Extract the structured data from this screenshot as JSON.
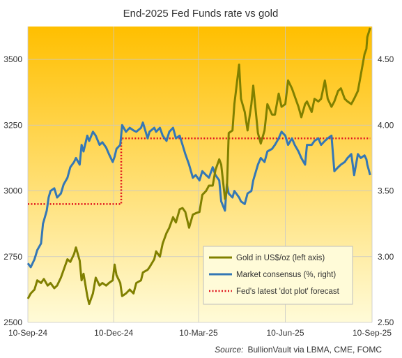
{
  "chart_data": {
    "type": "line",
    "title": "End-2025 Fed Funds rate vs gold",
    "x_ticks": [
      "10-Sep-24",
      "10-Dec-24",
      "10-Mar-25",
      "10-Jun-25",
      "10-Sep-25"
    ],
    "x_range": [
      "2024-09-10",
      "2025-09-10"
    ],
    "y_left": {
      "min": 2500,
      "max": 3625,
      "ticks": [
        "2500",
        "2750",
        "3000",
        "3250",
        "3500"
      ]
    },
    "y_right": {
      "min": 2.5,
      "max": 4.75,
      "ticks": [
        "2.50",
        "3.00",
        "3.50",
        "4.00",
        "4.50"
      ]
    },
    "gridlines": true,
    "legend_position": "bottom-right",
    "colors": {
      "gold": "#808000",
      "consensus": "#3477b5",
      "dot_plot": "#e0141e",
      "bg_top": "#ffbf00",
      "bg_bottom": "#fffbd8"
    },
    "series": [
      {
        "name": "Gold in US$/oz (left axis)",
        "axis": "left",
        "style": "solid",
        "points": [
          [
            "2024-09-10",
            2590
          ],
          [
            "2024-09-13",
            2610
          ],
          [
            "2024-09-17",
            2625
          ],
          [
            "2024-09-20",
            2660
          ],
          [
            "2024-09-24",
            2650
          ],
          [
            "2024-09-27",
            2665
          ],
          [
            "2024-10-01",
            2640
          ],
          [
            "2024-10-04",
            2650
          ],
          [
            "2024-10-08",
            2630
          ],
          [
            "2024-10-11",
            2640
          ],
          [
            "2024-10-15",
            2670
          ],
          [
            "2024-10-18",
            2700
          ],
          [
            "2024-10-22",
            2740
          ],
          [
            "2024-10-25",
            2730
          ],
          [
            "2024-10-29",
            2760
          ],
          [
            "2024-10-31",
            2785
          ],
          [
            "2024-11-04",
            2735
          ],
          [
            "2024-11-06",
            2660
          ],
          [
            "2024-11-08",
            2685
          ],
          [
            "2024-11-12",
            2600
          ],
          [
            "2024-11-14",
            2570
          ],
          [
            "2024-11-18",
            2610
          ],
          [
            "2024-11-21",
            2670
          ],
          [
            "2024-11-25",
            2640
          ],
          [
            "2024-11-28",
            2650
          ],
          [
            "2024-12-02",
            2640
          ],
          [
            "2024-12-05",
            2650
          ],
          [
            "2024-12-09",
            2660
          ],
          [
            "2024-12-11",
            2720
          ],
          [
            "2024-12-13",
            2680
          ],
          [
            "2024-12-17",
            2650
          ],
          [
            "2024-12-19",
            2600
          ],
          [
            "2024-12-23",
            2610
          ],
          [
            "2024-12-27",
            2625
          ],
          [
            "2024-12-31",
            2610
          ],
          [
            "2025-01-03",
            2650
          ],
          [
            "2025-01-08",
            2660
          ],
          [
            "2025-01-10",
            2690
          ],
          [
            "2025-01-15",
            2700
          ],
          [
            "2025-01-17",
            2710
          ],
          [
            "2025-01-22",
            2740
          ],
          [
            "2025-01-24",
            2770
          ],
          [
            "2025-01-28",
            2750
          ],
          [
            "2025-01-31",
            2800
          ],
          [
            "2025-02-04",
            2840
          ],
          [
            "2025-02-07",
            2860
          ],
          [
            "2025-02-11",
            2900
          ],
          [
            "2025-02-14",
            2880
          ],
          [
            "2025-02-18",
            2930
          ],
          [
            "2025-02-21",
            2935
          ],
          [
            "2025-02-24",
            2920
          ],
          [
            "2025-02-28",
            2860
          ],
          [
            "2025-03-04",
            2910
          ],
          [
            "2025-03-07",
            2915
          ],
          [
            "2025-03-11",
            2920
          ],
          [
            "2025-03-14",
            2985
          ],
          [
            "2025-03-18",
            3000
          ],
          [
            "2025-03-21",
            3020
          ],
          [
            "2025-03-25",
            3020
          ],
          [
            "2025-03-28",
            3080
          ],
          [
            "2025-04-01",
            3120
          ],
          [
            "2025-04-03",
            3100
          ],
          [
            "2025-04-07",
            2970
          ],
          [
            "2025-04-09",
            3000
          ],
          [
            "2025-04-11",
            3220
          ],
          [
            "2025-04-15",
            3230
          ],
          [
            "2025-04-17",
            3330
          ],
          [
            "2025-04-22",
            3480
          ],
          [
            "2025-04-24",
            3350
          ],
          [
            "2025-04-28",
            3300
          ],
          [
            "2025-05-01",
            3230
          ],
          [
            "2025-05-05",
            3330
          ],
          [
            "2025-05-07",
            3400
          ],
          [
            "2025-05-12",
            3220
          ],
          [
            "2025-05-15",
            3180
          ],
          [
            "2025-05-19",
            3230
          ],
          [
            "2025-05-22",
            3330
          ],
          [
            "2025-05-27",
            3290
          ],
          [
            "2025-05-30",
            3290
          ],
          [
            "2025-06-03",
            3370
          ],
          [
            "2025-06-06",
            3320
          ],
          [
            "2025-06-10",
            3330
          ],
          [
            "2025-06-13",
            3420
          ],
          [
            "2025-06-17",
            3390
          ],
          [
            "2025-06-20",
            3360
          ],
          [
            "2025-06-24",
            3320
          ],
          [
            "2025-06-27",
            3280
          ],
          [
            "2025-07-01",
            3330
          ],
          [
            "2025-07-03",
            3340
          ],
          [
            "2025-07-08",
            3300
          ],
          [
            "2025-07-11",
            3350
          ],
          [
            "2025-07-15",
            3340
          ],
          [
            "2025-07-18",
            3350
          ],
          [
            "2025-07-22",
            3420
          ],
          [
            "2025-07-25",
            3350
          ],
          [
            "2025-07-29",
            3320
          ],
          [
            "2025-08-01",
            3340
          ],
          [
            "2025-08-05",
            3380
          ],
          [
            "2025-08-08",
            3390
          ],
          [
            "2025-08-12",
            3350
          ],
          [
            "2025-08-15",
            3340
          ],
          [
            "2025-08-19",
            3330
          ],
          [
            "2025-08-22",
            3350
          ],
          [
            "2025-08-26",
            3380
          ],
          [
            "2025-08-29",
            3440
          ],
          [
            "2025-09-02",
            3520
          ],
          [
            "2025-09-04",
            3540
          ],
          [
            "2025-09-05",
            3585
          ],
          [
            "2025-09-08",
            3620
          ]
        ]
      },
      {
        "name": "Market consensus (%, right)",
        "axis": "right",
        "style": "solid",
        "points": [
          [
            "2024-09-10",
            2.95
          ],
          [
            "2024-09-13",
            2.92
          ],
          [
            "2024-09-17",
            2.98
          ],
          [
            "2024-09-20",
            3.05
          ],
          [
            "2024-09-24",
            3.1
          ],
          [
            "2024-09-26",
            3.25
          ],
          [
            "2024-09-30",
            3.35
          ],
          [
            "2024-10-02",
            3.45
          ],
          [
            "2024-10-04",
            3.5
          ],
          [
            "2024-10-08",
            3.52
          ],
          [
            "2024-10-11",
            3.45
          ],
          [
            "2024-10-15",
            3.48
          ],
          [
            "2024-10-18",
            3.55
          ],
          [
            "2024-10-22",
            3.6
          ],
          [
            "2024-10-25",
            3.68
          ],
          [
            "2024-10-29",
            3.72
          ],
          [
            "2024-10-31",
            3.75
          ],
          [
            "2024-11-04",
            3.7
          ],
          [
            "2024-11-06",
            3.85
          ],
          [
            "2024-11-08",
            3.8
          ],
          [
            "2024-11-12",
            3.92
          ],
          [
            "2024-11-14",
            3.88
          ],
          [
            "2024-11-18",
            3.95
          ],
          [
            "2024-11-21",
            3.92
          ],
          [
            "2024-11-25",
            3.85
          ],
          [
            "2024-11-28",
            3.87
          ],
          [
            "2024-12-02",
            3.83
          ],
          [
            "2024-12-05",
            3.78
          ],
          [
            "2024-12-09",
            3.72
          ],
          [
            "2024-12-11",
            3.76
          ],
          [
            "2024-12-13",
            3.82
          ],
          [
            "2024-12-17",
            3.85
          ],
          [
            "2024-12-19",
            4.0
          ],
          [
            "2024-12-23",
            3.95
          ],
          [
            "2024-12-27",
            3.98
          ],
          [
            "2024-12-31",
            3.96
          ],
          [
            "2025-01-03",
            3.95
          ],
          [
            "2025-01-08",
            3.98
          ],
          [
            "2025-01-10",
            4.02
          ],
          [
            "2025-01-15",
            3.9
          ],
          [
            "2025-01-17",
            3.95
          ],
          [
            "2025-01-22",
            3.98
          ],
          [
            "2025-01-24",
            3.95
          ],
          [
            "2025-01-28",
            3.98
          ],
          [
            "2025-01-31",
            3.92
          ],
          [
            "2025-02-04",
            3.88
          ],
          [
            "2025-02-07",
            3.95
          ],
          [
            "2025-02-11",
            3.98
          ],
          [
            "2025-02-14",
            3.9
          ],
          [
            "2025-02-18",
            3.92
          ],
          [
            "2025-02-21",
            3.85
          ],
          [
            "2025-02-24",
            3.78
          ],
          [
            "2025-02-28",
            3.7
          ],
          [
            "2025-03-04",
            3.6
          ],
          [
            "2025-03-07",
            3.62
          ],
          [
            "2025-03-11",
            3.58
          ],
          [
            "2025-03-14",
            3.65
          ],
          [
            "2025-03-18",
            3.62
          ],
          [
            "2025-03-21",
            3.6
          ],
          [
            "2025-03-25",
            3.68
          ],
          [
            "2025-03-28",
            3.62
          ],
          [
            "2025-04-01",
            3.58
          ],
          [
            "2025-04-03",
            3.42
          ],
          [
            "2025-04-07",
            3.35
          ],
          [
            "2025-04-09",
            3.55
          ],
          [
            "2025-04-11",
            3.48
          ],
          [
            "2025-04-15",
            3.45
          ],
          [
            "2025-04-17",
            3.5
          ],
          [
            "2025-04-22",
            3.45
          ],
          [
            "2025-04-24",
            3.42
          ],
          [
            "2025-04-28",
            3.4
          ],
          [
            "2025-05-01",
            3.48
          ],
          [
            "2025-05-05",
            3.5
          ],
          [
            "2025-05-07",
            3.58
          ],
          [
            "2025-05-12",
            3.7
          ],
          [
            "2025-05-15",
            3.75
          ],
          [
            "2025-05-19",
            3.72
          ],
          [
            "2025-05-22",
            3.8
          ],
          [
            "2025-05-27",
            3.82
          ],
          [
            "2025-05-30",
            3.85
          ],
          [
            "2025-06-03",
            3.9
          ],
          [
            "2025-06-06",
            3.95
          ],
          [
            "2025-06-10",
            3.92
          ],
          [
            "2025-06-13",
            3.85
          ],
          [
            "2025-06-17",
            3.9
          ],
          [
            "2025-06-20",
            3.85
          ],
          [
            "2025-06-24",
            3.8
          ],
          [
            "2025-06-27",
            3.75
          ],
          [
            "2025-07-01",
            3.7
          ],
          [
            "2025-07-03",
            3.85
          ],
          [
            "2025-07-08",
            3.85
          ],
          [
            "2025-07-11",
            3.88
          ],
          [
            "2025-07-15",
            3.9
          ],
          [
            "2025-07-18",
            3.85
          ],
          [
            "2025-07-22",
            3.88
          ],
          [
            "2025-07-25",
            3.9
          ],
          [
            "2025-07-29",
            3.92
          ],
          [
            "2025-08-01",
            3.65
          ],
          [
            "2025-08-05",
            3.68
          ],
          [
            "2025-08-08",
            3.7
          ],
          [
            "2025-08-12",
            3.72
          ],
          [
            "2025-08-15",
            3.75
          ],
          [
            "2025-08-19",
            3.78
          ],
          [
            "2025-08-22",
            3.62
          ],
          [
            "2025-08-26",
            3.78
          ],
          [
            "2025-08-29",
            3.75
          ],
          [
            "2025-09-02",
            3.77
          ],
          [
            "2025-09-04",
            3.74
          ],
          [
            "2025-09-05",
            3.7
          ],
          [
            "2025-09-08",
            3.62
          ]
        ]
      },
      {
        "name": "Fed's latest 'dot plot' forecast",
        "axis": "right",
        "style": "dotted",
        "points": [
          [
            "2024-09-10",
            3.4
          ],
          [
            "2024-12-18",
            3.4
          ],
          [
            "2024-12-18",
            3.9
          ],
          [
            "2025-09-08",
            3.9
          ]
        ]
      }
    ]
  },
  "source": {
    "label": "Source:",
    "text": "BullionVault via LBMA, CME, FOMC"
  }
}
